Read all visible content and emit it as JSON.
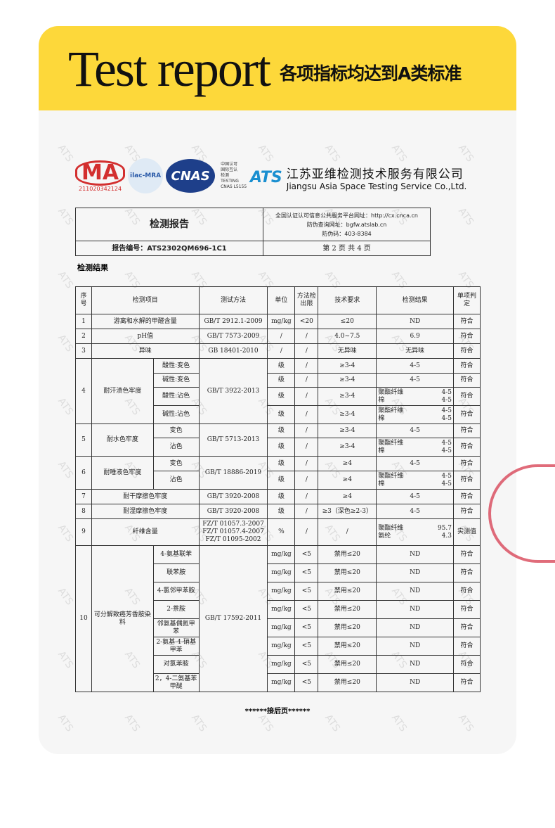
{
  "banner": {
    "title": "Test report",
    "subtitle": "各项指标均达到A类标准",
    "color": "#fdd83a"
  },
  "logos": {
    "cma": "MA",
    "cma_number": "211020342124",
    "ilac": "ilac-MRA",
    "cnas": "CNAS",
    "cnas_note": [
      "中国认可",
      "国际互认",
      "检测",
      "TESTING",
      "CNAS L5155"
    ],
    "ats": "ATS"
  },
  "company": {
    "cn": "江苏亚维检测技术服务有限公司",
    "en": "Jiangsu Asia Space Testing Service Co.,Ltd."
  },
  "report": {
    "title": "检测报告",
    "info": [
      "全国认证认可信息公共服务平台网址：http://cx.cnca.cn",
      "防伪查询网址：bgfw.atslab.cn",
      "防伪码：403-8384"
    ],
    "number": "报告编号：ATS2302QM696-1C1",
    "page": "第 2 页 共 4 页",
    "section": "检测结果"
  },
  "table": {
    "headers": [
      "序号",
      "检测项目",
      "测试方法",
      "单位",
      "方法检出限",
      "技术要求",
      "检测结果",
      "单项判定"
    ],
    "rows": [
      {
        "no": "1",
        "item": "游离和水解的甲醛含量",
        "method": "GB/T 2912.1-2009",
        "subs": [
          {
            "unit": "mg/kg",
            "limit": "<20",
            "req": "≤20",
            "result": "ND",
            "verdict": "符合"
          }
        ]
      },
      {
        "no": "2",
        "item": "pH值",
        "method": "GB/T 7573-2009",
        "subs": [
          {
            "unit": "/",
            "limit": "/",
            "req": "4.0~7.5",
            "result": "6.9",
            "verdict": "符合"
          }
        ]
      },
      {
        "no": "3",
        "item": "异味",
        "method": "GB 18401-2010",
        "subs": [
          {
            "unit": "/",
            "limit": "/",
            "req": "无异味",
            "result": "无异味",
            "verdict": "符合"
          }
        ]
      },
      {
        "no": "4",
        "item": "耐汗渍色牢度",
        "method": "GB/T 3922-2013",
        "subs": [
          {
            "sub": "酸性:变色",
            "unit": "级",
            "limit": "/",
            "req": "≥3-4",
            "result": "4-5",
            "verdict": "符合"
          },
          {
            "sub": "碱性:变色",
            "unit": "级",
            "limit": "/",
            "req": "≥3-4",
            "result": "4-5",
            "verdict": "符合"
          },
          {
            "sub": "酸性:沾色",
            "unit": "级",
            "limit": "/",
            "req": "≥3-4",
            "results": [
              [
                "聚酯纤维",
                "4-5"
              ],
              [
                "棉",
                "4-5"
              ]
            ],
            "verdict": "符合"
          },
          {
            "sub": "碱性:沾色",
            "unit": "级",
            "limit": "/",
            "req": "≥3-4",
            "results": [
              [
                "聚酯纤维",
                "4-5"
              ],
              [
                "棉",
                "4-5"
              ]
            ],
            "verdict": "符合"
          }
        ]
      },
      {
        "no": "5",
        "item": "耐水色牢度",
        "method": "GB/T 5713-2013",
        "subs": [
          {
            "sub": "变色",
            "unit": "级",
            "limit": "/",
            "req": "≥3-4",
            "result": "4-5",
            "verdict": "符合"
          },
          {
            "sub": "沾色",
            "unit": "级",
            "limit": "/",
            "req": "≥3-4",
            "results": [
              [
                "聚酯纤维",
                "4-5"
              ],
              [
                "棉",
                "4-5"
              ]
            ],
            "verdict": "符合"
          }
        ]
      },
      {
        "no": "6",
        "item": "耐唾液色牢度",
        "method": "GB/T  18886-2019",
        "subs": [
          {
            "sub": "变色",
            "unit": "级",
            "limit": "/",
            "req": "≥4",
            "result": "4-5",
            "verdict": "符合"
          },
          {
            "sub": "沾色",
            "unit": "级",
            "limit": "/",
            "req": "≥4",
            "results": [
              [
                "聚酯纤维",
                "4-5"
              ],
              [
                "棉",
                "4-5"
              ]
            ],
            "verdict": "符合"
          }
        ]
      },
      {
        "no": "7",
        "item": "耐干摩擦色牢度",
        "method": "GB/T 3920-2008",
        "subs": [
          {
            "unit": "级",
            "limit": "/",
            "req": "≥4",
            "result": "4-5",
            "verdict": "符合"
          }
        ]
      },
      {
        "no": "8",
        "item": "耐湿摩擦色牢度",
        "method": "GB/T 3920-2008",
        "subs": [
          {
            "unit": "级",
            "limit": "/",
            "req": "≥3（深色≥2-3）",
            "result": "4-5",
            "verdict": "符合"
          }
        ]
      },
      {
        "no": "9",
        "item": "纤维含量",
        "method": "FZ/T 01057.3-2007\nFZ/T 01057.4-2007\nFZ/T 01095-2002",
        "subs": [
          {
            "unit": "%",
            "limit": "/",
            "req": "/",
            "results": [
              [
                "聚酯纤维",
                "95.7"
              ],
              [
                "氨纶",
                "4.3"
              ]
            ],
            "verdict": "实测值"
          }
        ]
      },
      {
        "no": "10",
        "item": "可分解致癌芳香胺染料",
        "method": "GB/T 17592-2011",
        "subs": [
          {
            "sub": "4-氨基联苯",
            "unit": "mg/kg",
            "limit": "<5",
            "req": "禁用≤20",
            "result": "ND",
            "verdict": "符合"
          },
          {
            "sub": "联苯胺",
            "unit": "mg/kg",
            "limit": "<5",
            "req": "禁用≤20",
            "result": "ND",
            "verdict": "符合"
          },
          {
            "sub": "4-氯邻甲苯胺",
            "unit": "mg/kg",
            "limit": "<5",
            "req": "禁用≤20",
            "result": "ND",
            "verdict": "符合"
          },
          {
            "sub": "2-萘胺",
            "unit": "mg/kg",
            "limit": "<5",
            "req": "禁用≤20",
            "result": "ND",
            "verdict": "符合"
          },
          {
            "sub": "邻氨基偶氮甲苯",
            "unit": "mg/kg",
            "limit": "<5",
            "req": "禁用≤20",
            "result": "ND",
            "verdict": "符合"
          },
          {
            "sub": "2-氨基-4-硝基甲苯",
            "unit": "mg/kg",
            "limit": "<5",
            "req": "禁用≤20",
            "result": "ND",
            "verdict": "符合"
          },
          {
            "sub": "对氯苯胺",
            "unit": "mg/kg",
            "limit": "<5",
            "req": "禁用≤20",
            "result": "ND",
            "verdict": "符合"
          },
          {
            "sub": "2，4-二氨基苯甲醚",
            "unit": "mg/kg",
            "limit": "<5",
            "req": "禁用≤20",
            "result": "ND",
            "verdict": "符合"
          }
        ]
      }
    ]
  },
  "footer": "******接后页******",
  "watermark": "ATS"
}
